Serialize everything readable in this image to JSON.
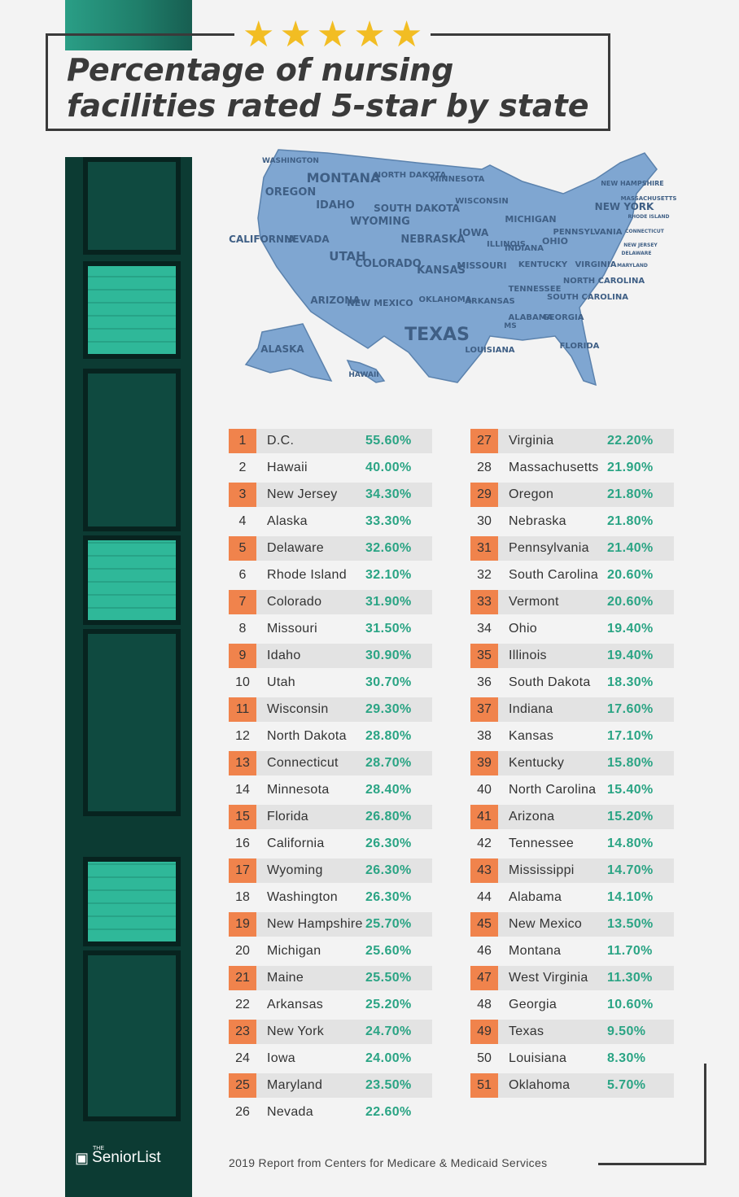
{
  "title": "Percentage of nursing facilities rated 5-star by state",
  "stars": 5,
  "colors": {
    "orange": "#f0834c",
    "green": "#2aa484",
    "star": "#f2bd23",
    "map": "#7fa6d1"
  },
  "map_labels": [
    "WASHINGTON",
    "MONTANA",
    "NORTH DAKOTA",
    "MINNESOTA",
    "OREGON",
    "IDAHO",
    "SOUTH DAKOTA",
    "WISCONSIN",
    "MICHIGAN",
    "WYOMING",
    "NEVADA",
    "CALIFORNIA",
    "UTAH",
    "COLORADO",
    "NEBRASKA",
    "IOWA",
    "ILLINOIS",
    "INDIANA",
    "OHIO",
    "KANSAS",
    "MISSOURI",
    "KENTUCKY",
    "ARIZONA",
    "NEW MEXICO",
    "OKLAHOMA",
    "ARKANSAS",
    "TENNESSEE",
    "TEXAS",
    "MS",
    "ALABAMA",
    "GEORGIA",
    "LOUISIANA",
    "FLORIDA",
    "ALASKA",
    "HAWAII",
    "NEW YORK",
    "PENNSYLVANIA",
    "VIRGINIA",
    "NORTH CAROLINA",
    "SOUTH CAROLINA",
    "NEW HAMPSHIRE",
    "MASSACHUSETTS",
    "RHODE ISLAND",
    "CONNECTICUT",
    "NEW JERSEY",
    "DELAWARE",
    "MARYLAND"
  ],
  "left_rows": [
    {
      "rank": "1",
      "state": "D.C.",
      "pct": "55.60%"
    },
    {
      "rank": "2",
      "state": "Hawaii",
      "pct": "40.00%"
    },
    {
      "rank": "3",
      "state": "New Jersey",
      "pct": "34.30%"
    },
    {
      "rank": "4",
      "state": "Alaska",
      "pct": "33.30%"
    },
    {
      "rank": "5",
      "state": "Delaware",
      "pct": "32.60%"
    },
    {
      "rank": "6",
      "state": "Rhode Island",
      "pct": "32.10%"
    },
    {
      "rank": "7",
      "state": "Colorado",
      "pct": "31.90%"
    },
    {
      "rank": "8",
      "state": "Missouri",
      "pct": "31.50%"
    },
    {
      "rank": "9",
      "state": "Idaho",
      "pct": "30.90%"
    },
    {
      "rank": "10",
      "state": "Utah",
      "pct": "30.70%"
    },
    {
      "rank": "11",
      "state": "Wisconsin",
      "pct": "29.30%"
    },
    {
      "rank": "12",
      "state": "North Dakota",
      "pct": "28.80%"
    },
    {
      "rank": "13",
      "state": "Connecticut",
      "pct": "28.70%"
    },
    {
      "rank": "14",
      "state": "Minnesota",
      "pct": "28.40%"
    },
    {
      "rank": "15",
      "state": "Florida",
      "pct": "26.80%"
    },
    {
      "rank": "16",
      "state": "California",
      "pct": "26.30%"
    },
    {
      "rank": "17",
      "state": "Wyoming",
      "pct": "26.30%"
    },
    {
      "rank": "18",
      "state": "Washington",
      "pct": "26.30%"
    },
    {
      "rank": "19",
      "state": "New Hampshire",
      "pct": "25.70%"
    },
    {
      "rank": "20",
      "state": "Michigan",
      "pct": "25.60%"
    },
    {
      "rank": "21",
      "state": "Maine",
      "pct": "25.50%"
    },
    {
      "rank": "22",
      "state": "Arkansas",
      "pct": "25.20%"
    },
    {
      "rank": "23",
      "state": "New York",
      "pct": "24.70%"
    },
    {
      "rank": "24",
      "state": "Iowa",
      "pct": "24.00%"
    },
    {
      "rank": "25",
      "state": "Maryland",
      "pct": "23.50%"
    },
    {
      "rank": "26",
      "state": "Nevada",
      "pct": "22.60%"
    }
  ],
  "right_rows": [
    {
      "rank": "27",
      "state": "Virginia",
      "pct": "22.20%"
    },
    {
      "rank": "28",
      "state": "Massachusetts",
      "pct": "21.90%"
    },
    {
      "rank": "29",
      "state": "Oregon",
      "pct": "21.80%"
    },
    {
      "rank": "30",
      "state": "Nebraska",
      "pct": "21.80%"
    },
    {
      "rank": "31",
      "state": "Pennsylvania",
      "pct": "21.40%"
    },
    {
      "rank": "32",
      "state": "South Carolina",
      "pct": "20.60%"
    },
    {
      "rank": "33",
      "state": "Vermont",
      "pct": "20.60%"
    },
    {
      "rank": "34",
      "state": "Ohio",
      "pct": "19.40%"
    },
    {
      "rank": "35",
      "state": "Illinois",
      "pct": "19.40%"
    },
    {
      "rank": "36",
      "state": "South Dakota",
      "pct": "18.30%"
    },
    {
      "rank": "37",
      "state": "Indiana",
      "pct": "17.60%"
    },
    {
      "rank": "38",
      "state": "Kansas",
      "pct": "17.10%"
    },
    {
      "rank": "39",
      "state": "Kentucky",
      "pct": "15.80%"
    },
    {
      "rank": "40",
      "state": "North Carolina",
      "pct": "15.40%"
    },
    {
      "rank": "41",
      "state": "Arizona",
      "pct": "15.20%"
    },
    {
      "rank": "42",
      "state": "Tennessee",
      "pct": "14.80%"
    },
    {
      "rank": "43",
      "state": "Mississippi",
      "pct": "14.70%"
    },
    {
      "rank": "44",
      "state": "Alabama",
      "pct": "14.10%"
    },
    {
      "rank": "45",
      "state": "New Mexico",
      "pct": "13.50%"
    },
    {
      "rank": "46",
      "state": "Montana",
      "pct": "11.70%"
    },
    {
      "rank": "47",
      "state": "West Virginia",
      "pct": "11.30%"
    },
    {
      "rank": "48",
      "state": "Georgia",
      "pct": "10.60%"
    },
    {
      "rank": "49",
      "state": "Texas",
      "pct": "9.50%"
    },
    {
      "rank": "50",
      "state": "Louisiana",
      "pct": "8.30%"
    },
    {
      "rank": "51",
      "state": "Oklahoma",
      "pct": "5.70%"
    }
  ],
  "source": "2019 Report from Centers for Medicare & Medicaid Services",
  "logo": {
    "small": "THE",
    "name": "SeniorList"
  }
}
